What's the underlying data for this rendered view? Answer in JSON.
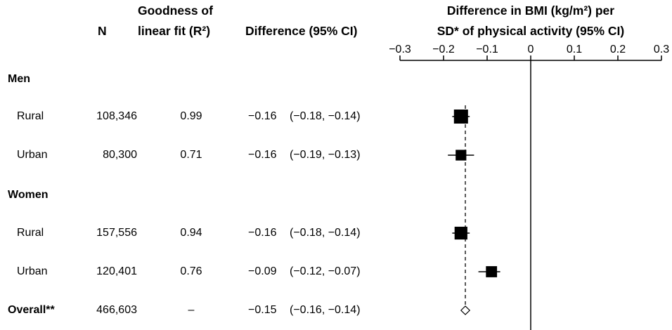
{
  "headers": {
    "n": "N",
    "r2_line1": "Goodness of",
    "r2_line2": "linear fit (R²)",
    "diff": "Difference (95% CI)",
    "plot_line1": "Difference in BMI (kg/m²) per",
    "plot_line2": "SD* of physical activity (95% CI)"
  },
  "groups": [
    {
      "label": "Men"
    },
    {
      "label": "Women"
    }
  ],
  "rows": [
    {
      "label": "Rural",
      "n": "108,346",
      "r2": "0.99",
      "diff": "−0.16",
      "ci": "(−0.18, −0.14)"
    },
    {
      "label": "Urban",
      "n": "80,300",
      "r2": "0.71",
      "diff": "−0.16",
      "ci": "(−0.19, −0.13)"
    },
    {
      "label": "Rural",
      "n": "157,556",
      "r2": "0.94",
      "diff": "−0.16",
      "ci": "(−0.18, −0.14)"
    },
    {
      "label": "Urban",
      "n": "120,401",
      "r2": "0.76",
      "diff": "−0.09",
      "ci": "(−0.12, −0.07)"
    }
  ],
  "overall": {
    "label": "Overall**",
    "n": "466,603",
    "r2": "–",
    "diff": "−0.15",
    "ci": "(−0.16, −0.14)"
  },
  "chart_data": {
    "type": "scatter",
    "subtype": "forest",
    "xlim": [
      -0.3,
      0.3
    ],
    "ticks": [
      -0.3,
      -0.2,
      -0.1,
      0,
      0.1,
      0.2,
      0.3
    ],
    "tick_labels": [
      "−0.3",
      "−0.2",
      "−0.1",
      "0",
      "0.1",
      "0.2",
      "0.3"
    ],
    "null_line": 0,
    "pooled_reference_line": -0.15,
    "points": [
      {
        "group": "Men",
        "label": "Rural",
        "estimate": -0.16,
        "lower": -0.18,
        "upper": -0.14,
        "weight": 1.0
      },
      {
        "group": "Men",
        "label": "Urban",
        "estimate": -0.16,
        "lower": -0.19,
        "upper": -0.13,
        "weight": 0.6
      },
      {
        "group": "Women",
        "label": "Rural",
        "estimate": -0.16,
        "lower": -0.18,
        "upper": -0.14,
        "weight": 0.85
      },
      {
        "group": "Women",
        "label": "Urban",
        "estimate": -0.09,
        "lower": -0.12,
        "upper": -0.07,
        "weight": 0.65
      }
    ],
    "overall": {
      "label": "Overall**",
      "estimate": -0.15,
      "lower": -0.16,
      "upper": -0.14
    }
  }
}
